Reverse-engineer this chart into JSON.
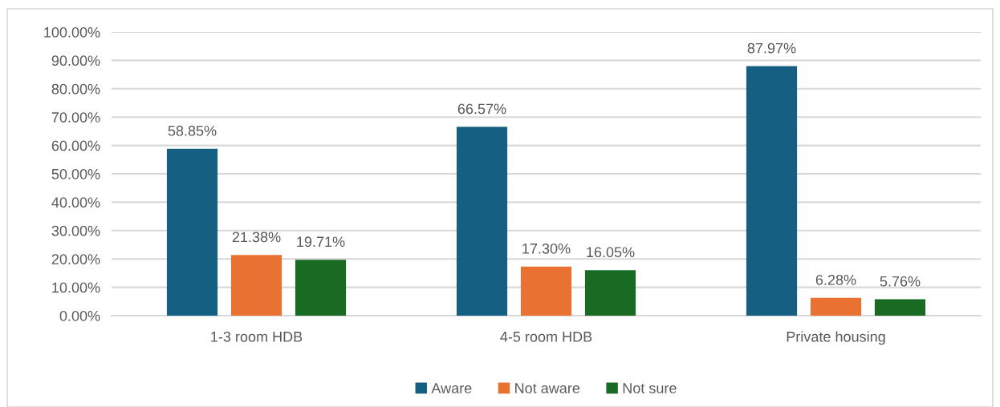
{
  "chart_data": {
    "type": "bar",
    "categories": [
      "1-3 room HDB",
      "4-5 room HDB",
      "Private housing"
    ],
    "series": [
      {
        "name": "Aware",
        "color": "#156082",
        "values": [
          58.85,
          66.57,
          87.97
        ],
        "value_labels": [
          "58.85%",
          "66.57%",
          "87.97%"
        ]
      },
      {
        "name": "Not aware",
        "color": "#e97132",
        "values": [
          21.38,
          17.3,
          6.28
        ],
        "value_labels": [
          "21.38%",
          "17.30%",
          "6.28%"
        ]
      },
      {
        "name": "Not sure",
        "color": "#196b24",
        "values": [
          19.71,
          16.05,
          5.76
        ],
        "value_labels": [
          "19.71%",
          "16.05%",
          "5.76%"
        ]
      }
    ],
    "ylim": [
      0,
      100
    ],
    "yticks": [
      {
        "value": 0,
        "label": "0.00%"
      },
      {
        "value": 10,
        "label": "10.00%"
      },
      {
        "value": 20,
        "label": "20.00%"
      },
      {
        "value": 30,
        "label": "30.00%"
      },
      {
        "value": 40,
        "label": "40.00%"
      },
      {
        "value": 50,
        "label": "50.00%"
      },
      {
        "value": 60,
        "label": "60.00%"
      },
      {
        "value": 70,
        "label": "70.00%"
      },
      {
        "value": 80,
        "label": "80.00%"
      },
      {
        "value": 90,
        "label": "90.00%"
      },
      {
        "value": 100,
        "label": "100.00%"
      }
    ],
    "grid": "y",
    "legend": "bottom"
  }
}
